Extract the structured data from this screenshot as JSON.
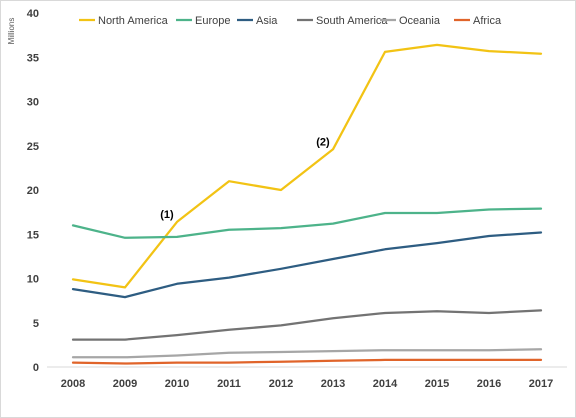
{
  "chart_data": {
    "type": "line",
    "title": "",
    "xlabel": "",
    "ylabel": "Millions",
    "x": [
      "2008",
      "2009",
      "2010",
      "2011",
      "2012",
      "2013",
      "2014",
      "2015",
      "2016",
      "2017"
    ],
    "ylim": [
      0,
      40
    ],
    "yticks": [
      0,
      5,
      10,
      15,
      20,
      25,
      30,
      35,
      40
    ],
    "grid": false,
    "legend_position": "top",
    "series": [
      {
        "name": "North America",
        "color": "#f2c314",
        "values": [
          9.9,
          9.0,
          16.4,
          21.0,
          20.0,
          24.6,
          35.6,
          36.4,
          35.7,
          35.4
        ]
      },
      {
        "name": "Europe",
        "color": "#4db38a",
        "values": [
          16.0,
          14.6,
          14.7,
          15.5,
          15.7,
          16.2,
          17.4,
          17.4,
          17.8,
          17.9
        ]
      },
      {
        "name": "Asia",
        "color": "#2e5d82",
        "values": [
          8.8,
          7.9,
          9.4,
          10.1,
          11.1,
          12.2,
          13.3,
          14.0,
          14.8,
          15.2
        ]
      },
      {
        "name": "South America",
        "color": "#737373",
        "values": [
          3.1,
          3.1,
          3.6,
          4.2,
          4.7,
          5.5,
          6.1,
          6.3,
          6.1,
          6.4
        ]
      },
      {
        "name": "Oceania",
        "color": "#a6a6a6",
        "values": [
          1.1,
          1.1,
          1.3,
          1.6,
          1.7,
          1.8,
          1.9,
          1.9,
          1.9,
          2.0
        ]
      },
      {
        "name": "Africa",
        "color": "#e0642a",
        "values": [
          0.5,
          0.4,
          0.5,
          0.5,
          0.6,
          0.7,
          0.8,
          0.8,
          0.8,
          0.8
        ]
      }
    ],
    "annotations": [
      {
        "text": "(1)",
        "x": "2010",
        "y": 16.4
      },
      {
        "text": "(2)",
        "x": "2013",
        "y": 24.6
      }
    ]
  }
}
